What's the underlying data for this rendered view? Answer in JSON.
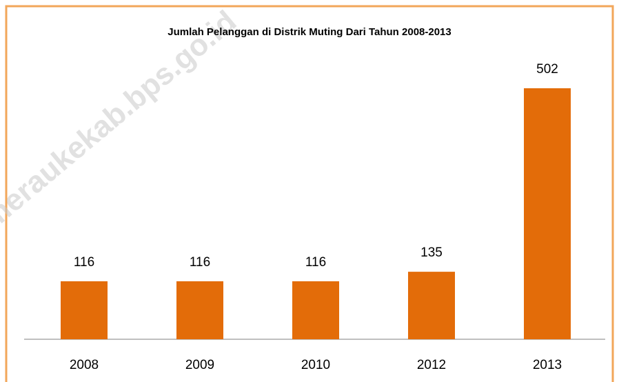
{
  "chart_data": {
    "type": "bar",
    "title": "Jumlah Pelanggan di Distrik Muting Dari Tahun 2008-2013",
    "categories": [
      "2008",
      "2009",
      "2010",
      "2012",
      "2013"
    ],
    "values": [
      116,
      116,
      116,
      135,
      502
    ],
    "color": "#e36c09",
    "watermark": "https://meraukekab.bps.go.id"
  }
}
